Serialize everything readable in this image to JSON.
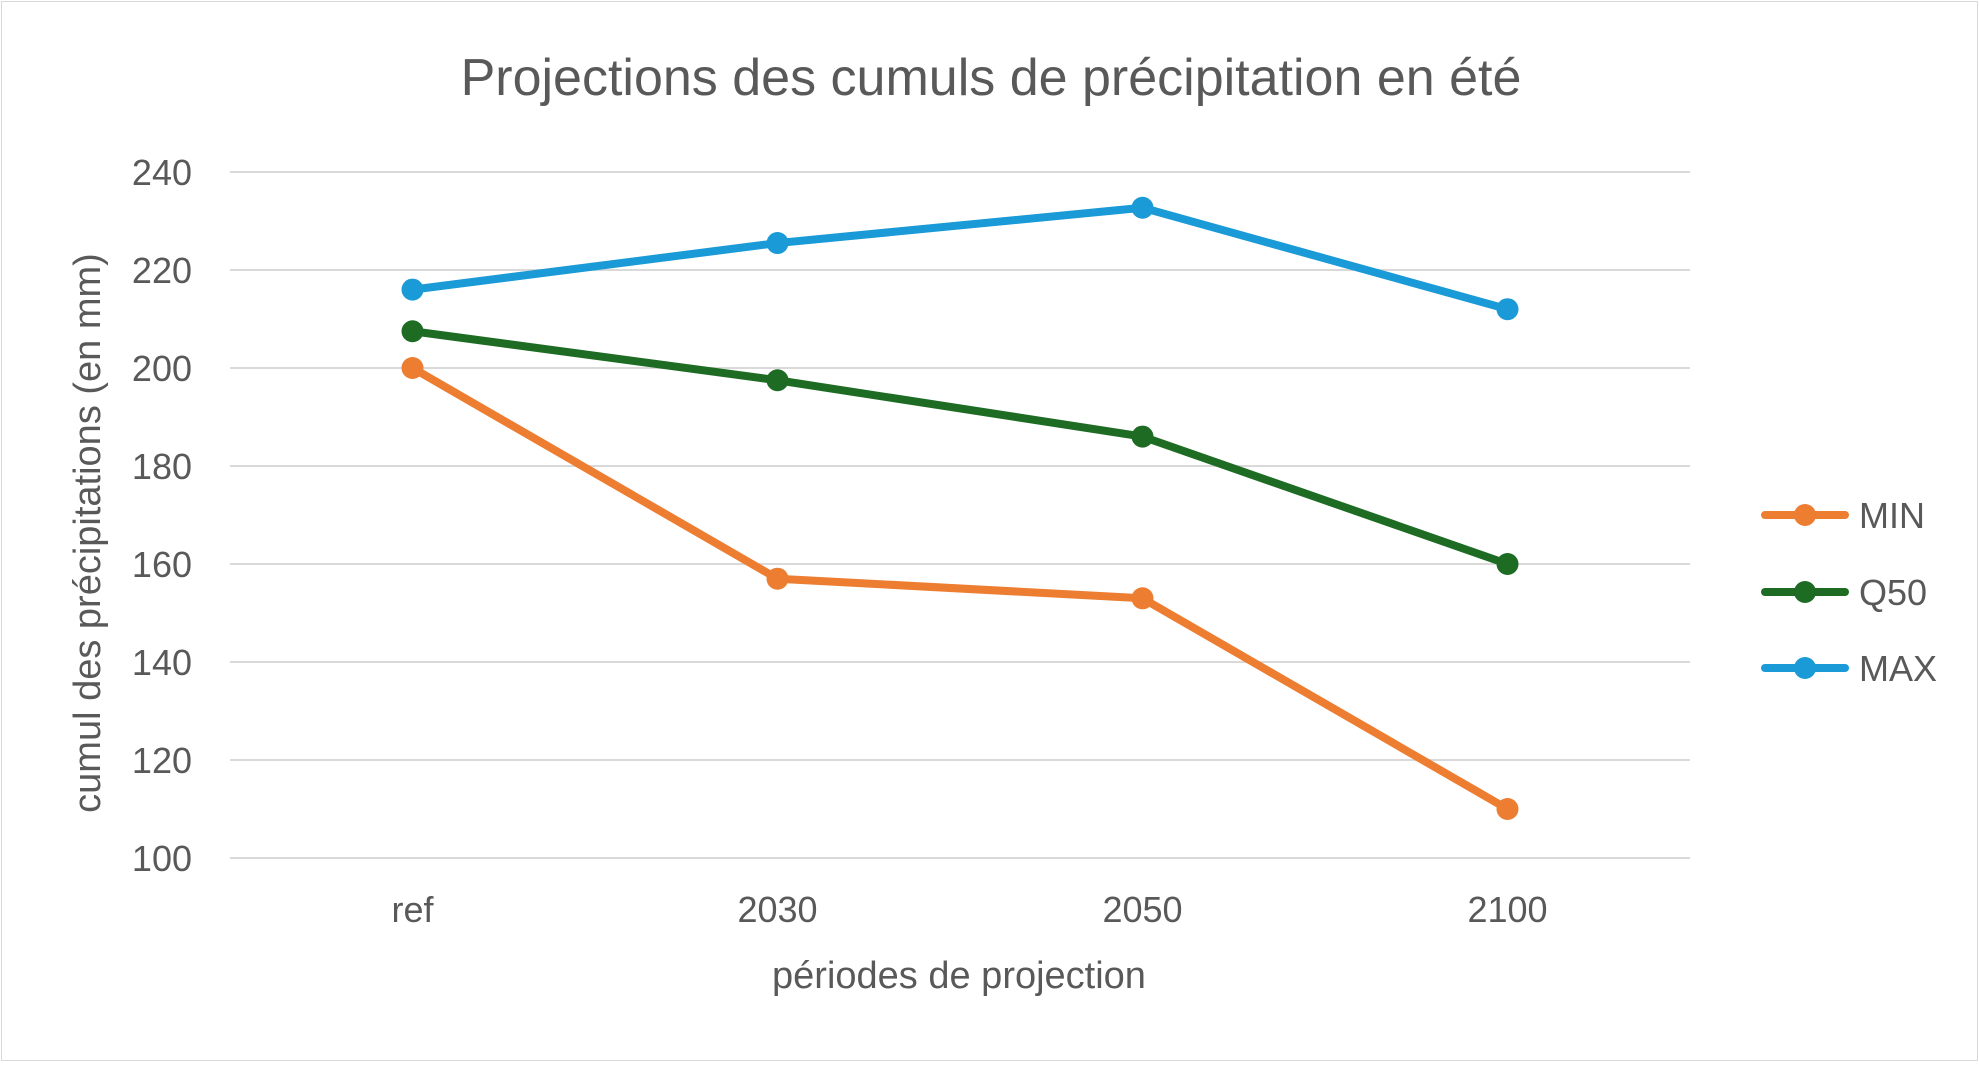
{
  "chart_data": {
    "type": "line",
    "title": "Projections des cumuls de précipitation en été",
    "xlabel": "périodes de projection",
    "ylabel": "cumul des précipitations (en mm)",
    "categories": [
      "ref",
      "2030",
      "2050",
      "2100"
    ],
    "ylim": [
      100,
      240
    ],
    "yticks": [
      100,
      120,
      140,
      160,
      180,
      200,
      220,
      240
    ],
    "grid": true,
    "legend_position": "right",
    "series": [
      {
        "name": "MIN",
        "color": "#ed7d31",
        "values": [
          200,
          157,
          153,
          110
        ]
      },
      {
        "name": "Q50",
        "color": "#1e6b24",
        "values": [
          207.5,
          197.5,
          186,
          160
        ]
      },
      {
        "name": "MAX",
        "color": "#1a9ad6",
        "values": [
          216,
          225.5,
          232.7,
          212
        ]
      }
    ]
  }
}
